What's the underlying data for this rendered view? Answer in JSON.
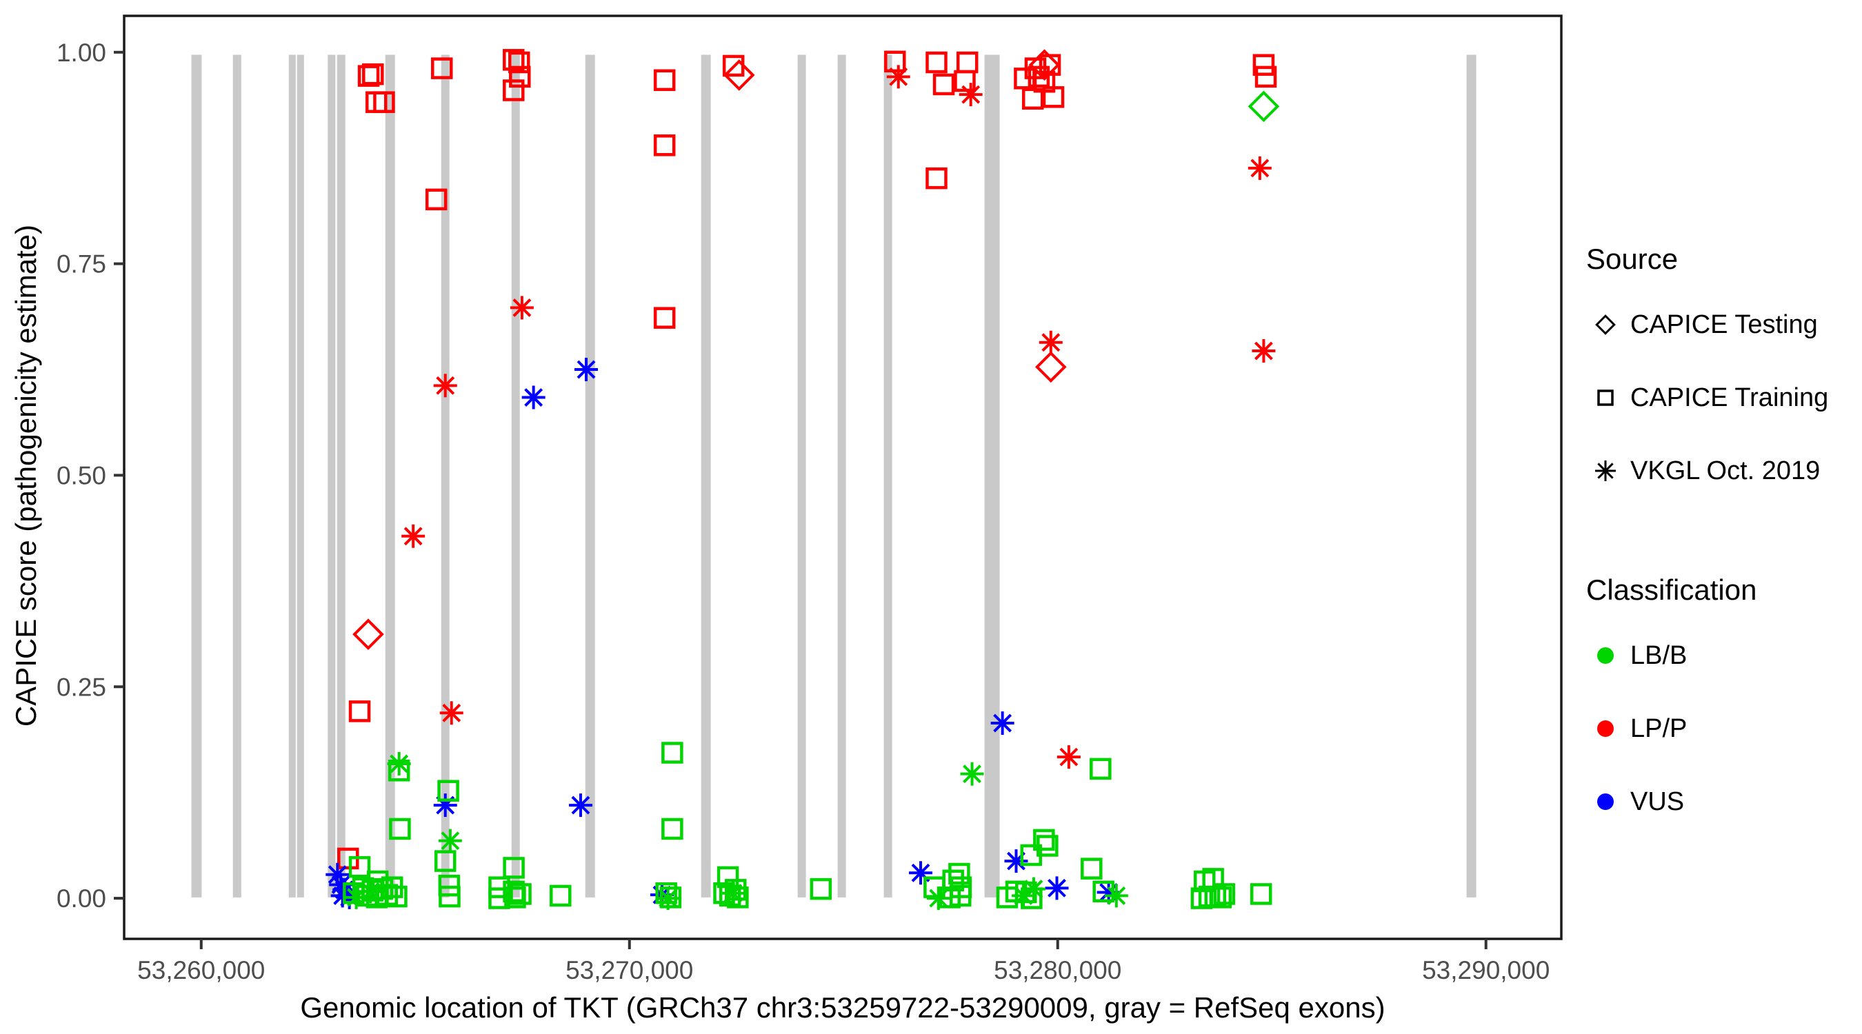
{
  "chart_data": {
    "type": "scatter",
    "title": "",
    "xlabel": "Genomic location of TKT (GRCh37 chr3:53259722-53290009, gray = RefSeq exons)",
    "ylabel": "CAPICE score (pathogenicity estimate)",
    "xlim": [
      53258200,
      53291760
    ],
    "ylim": [
      -0.048,
      1.043
    ],
    "grid": false,
    "x_ticks": [
      {
        "v": 53260000,
        "label": "53,260,000"
      },
      {
        "v": 53270000,
        "label": "53,270,000"
      },
      {
        "v": 53280000,
        "label": "53,280,000"
      },
      {
        "v": 53290000,
        "label": "53,290,000"
      }
    ],
    "y_ticks": [
      {
        "v": 0.0,
        "label": "0.00"
      },
      {
        "v": 0.25,
        "label": "0.25"
      },
      {
        "v": 0.5,
        "label": "0.50"
      },
      {
        "v": 0.75,
        "label": "0.75"
      },
      {
        "v": 1.0,
        "label": "1.00"
      }
    ],
    "exon_color": "#C9C9C9",
    "exons_note": "gray vertical bars = RefSeq exons, drawn from score 0 to 1",
    "exons": [
      [
        53259770,
        53260010
      ],
      [
        53260740,
        53260935
      ],
      [
        53262045,
        53262206
      ],
      [
        53262238,
        53262400
      ],
      [
        53262955,
        53263133
      ],
      [
        53263172,
        53263365
      ],
      [
        53264299,
        53264524
      ],
      [
        53265604,
        53265796
      ],
      [
        53267246,
        53267439
      ],
      [
        53268968,
        53269194
      ],
      [
        53271673,
        53271898
      ],
      [
        53273927,
        53274120
      ],
      [
        53274861,
        53275054
      ],
      [
        53275940,
        53276133
      ],
      [
        53278291,
        53278645
      ],
      [
        53289547,
        53289773
      ]
    ],
    "classification_colors": {
      "LB/B": "#00D500",
      "LP/P": "#FF0000",
      "VUS": "#0000FF"
    },
    "shape_for_source": {
      "CAPICE Testing": "diamond",
      "CAPICE Training": "square",
      "VKGL Oct. 2019": "asterisk"
    },
    "points_format": [
      "genomic_position",
      "capice_score",
      "shape",
      "classification"
    ],
    "points": [
      [
        53263700,
        0.221,
        "square",
        "LP/P"
      ],
      [
        53263900,
        0.312,
        "diamond",
        "LP/P"
      ],
      [
        53263430,
        0.047,
        "square",
        "LP/P"
      ],
      [
        53263910,
        0.972,
        "square",
        "LP/P"
      ],
      [
        53264010,
        0.974,
        "square",
        "LP/P"
      ],
      [
        53264090,
        0.941,
        "square",
        "LP/P"
      ],
      [
        53264270,
        0.941,
        "square",
        "LP/P"
      ],
      [
        53264950,
        0.428,
        "asterisk",
        "LP/P"
      ],
      [
        53265490,
        0.826,
        "square",
        "LP/P"
      ],
      [
        53265620,
        0.981,
        "square",
        "LP/P"
      ],
      [
        53265700,
        0.606,
        "asterisk",
        "LP/P"
      ],
      [
        53265845,
        0.219,
        "asterisk",
        "LP/P"
      ],
      [
        53267295,
        0.991,
        "square",
        "LP/P"
      ],
      [
        53267424,
        0.988,
        "square",
        "LP/P"
      ],
      [
        53267440,
        0.971,
        "square",
        "LP/P"
      ],
      [
        53267295,
        0.955,
        "square",
        "LP/P"
      ],
      [
        53267490,
        0.698,
        "asterisk",
        "LP/P"
      ],
      [
        53270820,
        0.967,
        "square",
        "LP/P"
      ],
      [
        53270820,
        0.89,
        "square",
        "LP/P"
      ],
      [
        53270820,
        0.686,
        "square",
        "LP/P"
      ],
      [
        53272430,
        0.984,
        "square",
        "LP/P"
      ],
      [
        53272560,
        0.973,
        "diamond",
        "LP/P"
      ],
      [
        53276200,
        0.989,
        "square",
        "LP/P"
      ],
      [
        53276280,
        0.971,
        "asterisk",
        "LP/P"
      ],
      [
        53277170,
        0.988,
        "square",
        "LP/P"
      ],
      [
        53277340,
        0.962,
        "square",
        "LP/P"
      ],
      [
        53277170,
        0.851,
        "square",
        "LP/P"
      ],
      [
        53277890,
        0.988,
        "square",
        "LP/P"
      ],
      [
        53277830,
        0.966,
        "square",
        "LP/P"
      ],
      [
        53277970,
        0.95,
        "asterisk",
        "LP/P"
      ],
      [
        53279230,
        0.969,
        "square",
        "LP/P"
      ],
      [
        53279420,
        0.945,
        "square",
        "LP/P"
      ],
      [
        53279480,
        0.981,
        "square",
        "LP/P"
      ],
      [
        53279560,
        0.971,
        "square",
        "LP/P"
      ],
      [
        53279690,
        0.985,
        "diamond",
        "LP/P"
      ],
      [
        53279690,
        0.965,
        "square",
        "LP/P"
      ],
      [
        53279820,
        0.985,
        "square",
        "LP/P"
      ],
      [
        53279900,
        0.947,
        "square",
        "LP/P"
      ],
      [
        53279840,
        0.657,
        "asterisk",
        "LP/P"
      ],
      [
        53279840,
        0.628,
        "diamond",
        "LP/P"
      ],
      [
        53280260,
        0.167,
        "asterisk",
        "LP/P"
      ],
      [
        53284810,
        0.985,
        "square",
        "LP/P"
      ],
      [
        53284860,
        0.971,
        "square",
        "LP/P"
      ],
      [
        53284720,
        0.863,
        "asterisk",
        "LP/P"
      ],
      [
        53284810,
        0.647,
        "asterisk",
        "LP/P"
      ],
      [
        53263180,
        0.028,
        "asterisk",
        "VUS"
      ],
      [
        53263260,
        0.016,
        "asterisk",
        "VUS"
      ],
      [
        53263340,
        0.01,
        "asterisk",
        "VUS"
      ],
      [
        53263300,
        0.003,
        "asterisk",
        "VUS"
      ],
      [
        53263460,
        0.001,
        "asterisk",
        "VUS"
      ],
      [
        53265700,
        0.11,
        "asterisk",
        "VUS"
      ],
      [
        53267760,
        0.592,
        "asterisk",
        "VUS"
      ],
      [
        53268860,
        0.11,
        "asterisk",
        "VUS"
      ],
      [
        53268990,
        0.625,
        "asterisk",
        "VUS"
      ],
      [
        53270760,
        0.004,
        "asterisk",
        "VUS"
      ],
      [
        53276800,
        0.03,
        "asterisk",
        "VUS"
      ],
      [
        53278710,
        0.207,
        "asterisk",
        "VUS"
      ],
      [
        53279030,
        0.044,
        "asterisk",
        "VUS"
      ],
      [
        53279980,
        0.012,
        "asterisk",
        "VUS"
      ],
      [
        53281190,
        0.007,
        "asterisk",
        "VUS"
      ],
      [
        53263560,
        0.006,
        "square",
        "LB/B"
      ],
      [
        53263620,
        0.001,
        "asterisk",
        "LB/B"
      ],
      [
        53263700,
        0.037,
        "square",
        "LB/B"
      ],
      [
        53263780,
        0.012,
        "square",
        "LB/B"
      ],
      [
        53263870,
        0.003,
        "square",
        "LB/B"
      ],
      [
        53263950,
        0.008,
        "asterisk",
        "LB/B"
      ],
      [
        53264000,
        0.009,
        "square",
        "LB/B"
      ],
      [
        53264100,
        0.001,
        "square",
        "LB/B"
      ],
      [
        53264120,
        0.02,
        "square",
        "LB/B"
      ],
      [
        53264230,
        0.011,
        "square",
        "LB/B"
      ],
      [
        53264340,
        0.004,
        "square",
        "LB/B"
      ],
      [
        53264460,
        0.013,
        "square",
        "LB/B"
      ],
      [
        53264560,
        0.002,
        "square",
        "LB/B"
      ],
      [
        53264620,
        0.159,
        "asterisk",
        "LB/B"
      ],
      [
        53264620,
        0.151,
        "square",
        "LB/B"
      ],
      [
        53264640,
        0.082,
        "square",
        "LB/B"
      ],
      [
        53265700,
        0.044,
        "square",
        "LB/B"
      ],
      [
        53265770,
        0.127,
        "square",
        "LB/B"
      ],
      [
        53265790,
        0.015,
        "square",
        "LB/B"
      ],
      [
        53265800,
        0.002,
        "square",
        "LB/B"
      ],
      [
        53265815,
        0.068,
        "asterisk",
        "LB/B"
      ],
      [
        53266960,
        0.013,
        "square",
        "LB/B"
      ],
      [
        53266960,
        0.0,
        "square",
        "LB/B"
      ],
      [
        53267300,
        0.036,
        "square",
        "LB/B"
      ],
      [
        53267300,
        0.008,
        "square",
        "LB/B"
      ],
      [
        53267330,
        0.001,
        "square",
        "LB/B"
      ],
      [
        53267460,
        0.005,
        "square",
        "LB/B"
      ],
      [
        53268390,
        0.003,
        "square",
        "LB/B"
      ],
      [
        53270860,
        0.006,
        "square",
        "LB/B"
      ],
      [
        53270900,
        0.0,
        "asterisk",
        "LB/B"
      ],
      [
        53270960,
        0.001,
        "square",
        "LB/B"
      ],
      [
        53271000,
        0.172,
        "square",
        "LB/B"
      ],
      [
        53271000,
        0.082,
        "square",
        "LB/B"
      ],
      [
        53272210,
        0.006,
        "square",
        "LB/B"
      ],
      [
        53272300,
        0.025,
        "square",
        "LB/B"
      ],
      [
        53272350,
        0.003,
        "square",
        "LB/B"
      ],
      [
        53272420,
        0.006,
        "asterisk",
        "LB/B"
      ],
      [
        53272480,
        0.01,
        "square",
        "LB/B"
      ],
      [
        53272530,
        0.001,
        "square",
        "LB/B"
      ],
      [
        53274470,
        0.011,
        "square",
        "LB/B"
      ],
      [
        53277120,
        0.013,
        "square",
        "LB/B"
      ],
      [
        53277215,
        0.0,
        "asterisk",
        "LB/B"
      ],
      [
        53277480,
        0.001,
        "square",
        "LB/B"
      ],
      [
        53277560,
        0.021,
        "square",
        "LB/B"
      ],
      [
        53277700,
        0.029,
        "square",
        "LB/B"
      ],
      [
        53277730,
        0.003,
        "square",
        "LB/B"
      ],
      [
        53277740,
        0.013,
        "square",
        "LB/B"
      ],
      [
        53278000,
        0.147,
        "asterisk",
        "LB/B"
      ],
      [
        53278820,
        0.001,
        "square",
        "LB/B"
      ],
      [
        53279030,
        0.008,
        "square",
        "LB/B"
      ],
      [
        53279200,
        0.003,
        "asterisk",
        "LB/B"
      ],
      [
        53279260,
        0.007,
        "square",
        "LB/B"
      ],
      [
        53279380,
        0.051,
        "square",
        "LB/B"
      ],
      [
        53279390,
        0.0,
        "square",
        "LB/B"
      ],
      [
        53279440,
        0.011,
        "asterisk",
        "LB/B"
      ],
      [
        53279680,
        0.069,
        "square",
        "LB/B"
      ],
      [
        53279760,
        0.062,
        "square",
        "LB/B"
      ],
      [
        53280790,
        0.035,
        "square",
        "LB/B"
      ],
      [
        53281000,
        0.153,
        "square",
        "LB/B"
      ],
      [
        53281070,
        0.008,
        "square",
        "LB/B"
      ],
      [
        53281370,
        0.003,
        "asterisk",
        "LB/B"
      ],
      [
        53283360,
        0.0,
        "square",
        "LB/B"
      ],
      [
        53283430,
        0.02,
        "square",
        "LB/B"
      ],
      [
        53283540,
        0.002,
        "square",
        "LB/B"
      ],
      [
        53283630,
        0.023,
        "square",
        "LB/B"
      ],
      [
        53283680,
        0.002,
        "square",
        "LB/B"
      ],
      [
        53283810,
        0.001,
        "square",
        "LB/B"
      ],
      [
        53283890,
        0.005,
        "square",
        "LB/B"
      ],
      [
        53284750,
        0.005,
        "square",
        "LB/B"
      ],
      [
        53284810,
        0.936,
        "diamond",
        "LB/B"
      ]
    ]
  },
  "legend": {
    "source": {
      "title": "Source",
      "items": [
        {
          "label": "CAPICE Testing",
          "symbol": "diamond"
        },
        {
          "label": "CAPICE Training",
          "symbol": "square"
        },
        {
          "label": "VKGL Oct. 2019",
          "symbol": "asterisk"
        }
      ]
    },
    "classification": {
      "title": "Classification",
      "items": [
        {
          "label": "LB/B",
          "color": "#00D500"
        },
        {
          "label": "LP/P",
          "color": "#FF0000"
        },
        {
          "label": "VUS",
          "color": "#0000FF"
        }
      ]
    }
  }
}
